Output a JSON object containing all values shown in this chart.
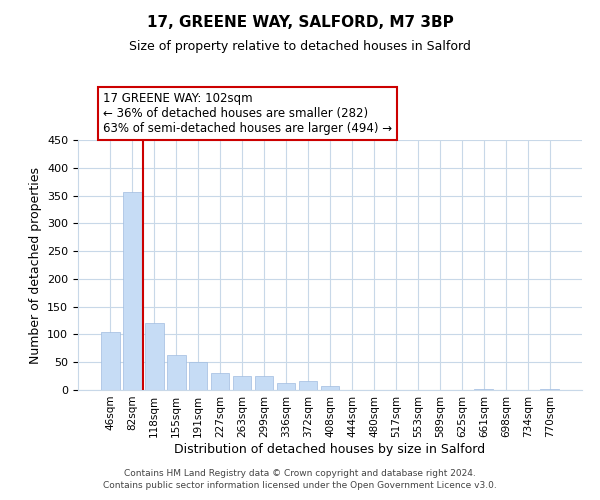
{
  "title": "17, GREENE WAY, SALFORD, M7 3BP",
  "subtitle": "Size of property relative to detached houses in Salford",
  "xlabel": "Distribution of detached houses by size in Salford",
  "ylabel": "Number of detached properties",
  "bar_labels": [
    "46sqm",
    "82sqm",
    "118sqm",
    "155sqm",
    "191sqm",
    "227sqm",
    "263sqm",
    "299sqm",
    "336sqm",
    "372sqm",
    "408sqm",
    "444sqm",
    "480sqm",
    "517sqm",
    "553sqm",
    "589sqm",
    "625sqm",
    "661sqm",
    "698sqm",
    "734sqm",
    "770sqm"
  ],
  "bar_values": [
    105,
    356,
    121,
    63,
    50,
    30,
    26,
    25,
    13,
    17,
    8,
    0,
    0,
    0,
    0,
    0,
    0,
    2,
    0,
    0,
    2
  ],
  "bar_color": "#c6dcf5",
  "bar_edge_color": "#a0bce0",
  "vline_x": 1.5,
  "vline_color": "#cc0000",
  "annotation_title": "17 GREENE WAY: 102sqm",
  "annotation_line1": "← 36% of detached houses are smaller (282)",
  "annotation_line2": "63% of semi-detached houses are larger (494) →",
  "annotation_fontsize": 8.5,
  "ylim": [
    0,
    450
  ],
  "yticks": [
    0,
    50,
    100,
    150,
    200,
    250,
    300,
    350,
    400,
    450
  ],
  "footnote1": "Contains HM Land Registry data © Crown copyright and database right 2024.",
  "footnote2": "Contains public sector information licensed under the Open Government Licence v3.0.",
  "background_color": "#ffffff",
  "grid_color": "#c8d8e8",
  "title_fontsize": 11,
  "subtitle_fontsize": 9
}
